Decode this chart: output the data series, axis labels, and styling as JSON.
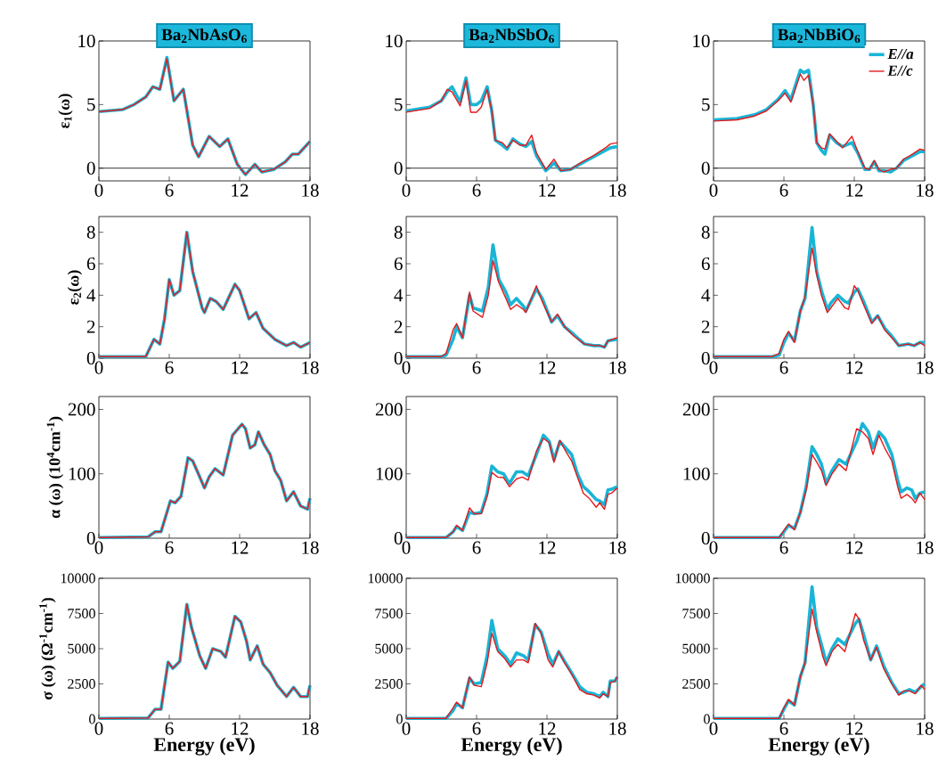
{
  "chart_data": [
    {
      "type": "line",
      "title": "Ba$_{2}$NbAsO$_{6}$",
      "ylabel": "ε$_{1}$(ω)",
      "x": [
        0,
        2,
        3,
        4,
        4.6,
        5.2,
        5.8,
        6.4,
        7.2,
        8.0,
        8.5,
        9.4,
        10.3,
        11.0,
        11.8,
        12.5,
        13.3,
        13.9,
        14.9,
        15.9,
        16.5,
        17.0,
        18
      ],
      "series": [
        {
          "color": "#19b5d6",
          "values": [
            4.45,
            4.6,
            5.0,
            5.6,
            6.4,
            6.2,
            8.7,
            5.3,
            6.2,
            1.8,
            0.9,
            2.5,
            1.7,
            2.3,
            0.3,
            -0.5,
            0.3,
            -0.3,
            -0.1,
            0.5,
            1.1,
            1.1,
            2.1
          ]
        },
        {
          "color": "#e41a1c",
          "values": [
            4.45,
            4.6,
            5.0,
            5.6,
            6.4,
            6.2,
            8.6,
            5.3,
            6.2,
            1.8,
            0.9,
            2.5,
            1.7,
            2.3,
            0.3,
            -0.5,
            0.3,
            -0.3,
            -0.1,
            0.5,
            1.1,
            1.1,
            2.1
          ]
        }
      ],
      "xlim": [
        0,
        18
      ],
      "xticks": [
        0,
        6,
        12,
        18
      ],
      "ylim": [
        -1,
        10
      ],
      "yticks": [
        0,
        5,
        10
      ],
      "ref_lines": [
        {
          "axis": "y",
          "value": 0,
          "color": "#000000"
        }
      ]
    },
    {
      "type": "line",
      "title": "Ba$_{2}$NbSbO$_{6}$",
      "x": [
        0,
        2,
        3,
        3.5,
        3.9,
        4.6,
        5.1,
        5.5,
        6.0,
        6.4,
        6.9,
        7.3,
        7.6,
        8.2,
        8.6,
        9.1,
        9.7,
        10.2,
        10.7,
        11.1,
        11.9,
        12.6,
        13.2,
        14.0,
        15.0,
        16.0,
        17.0,
        17.4,
        18
      ],
      "series": [
        {
          "color": "#19b5d6",
          "values": [
            4.5,
            4.8,
            5.3,
            6.0,
            6.4,
            5.2,
            7.1,
            5.0,
            5.0,
            5.3,
            6.4,
            4.5,
            2.2,
            1.8,
            1.5,
            2.3,
            1.9,
            1.7,
            2.1,
            1.0,
            -0.2,
            0.4,
            -0.2,
            -0.1,
            0.4,
            0.9,
            1.4,
            1.6,
            1.7
          ]
        },
        {
          "color": "#e41a1c",
          "values": [
            4.4,
            4.7,
            5.3,
            6.2,
            6.0,
            4.9,
            6.9,
            4.4,
            4.4,
            4.8,
            6.2,
            4.5,
            2.2,
            2.0,
            1.6,
            2.2,
            1.8,
            1.8,
            2.6,
            1.2,
            -0.1,
            0.7,
            -0.2,
            -0.1,
            0.5,
            1.0,
            1.6,
            1.9,
            2.0
          ]
        }
      ],
      "xlim": [
        0,
        18
      ],
      "xticks": [
        0,
        6,
        12,
        18
      ],
      "ylim": [
        -1,
        10
      ],
      "yticks": [
        0,
        5,
        10
      ],
      "ref_lines": [
        {
          "axis": "y",
          "value": 0,
          "color": "#000000"
        }
      ]
    },
    {
      "type": "line",
      "title": "Ba$_{2}$NbBiO$_{6}$",
      "legend": "top right",
      "x": [
        0,
        2,
        3.5,
        4.5,
        5.5,
        6.1,
        6.6,
        7.4,
        7.7,
        8.1,
        8.5,
        8.8,
        9.2,
        9.5,
        9.9,
        10.5,
        11.0,
        11.8,
        12.3,
        12.9,
        13.3,
        13.7,
        14.1,
        14.5,
        15.1,
        15.6,
        16.2,
        16.8,
        17.6,
        18
      ],
      "series": [
        {
          "name": "E//a",
          "color": "#19b5d6",
          "values": [
            3.8,
            3.9,
            4.2,
            4.6,
            5.4,
            6.1,
            5.4,
            7.7,
            7.5,
            7.7,
            5.0,
            2.0,
            1.4,
            1.1,
            2.6,
            2.0,
            1.7,
            2.0,
            1.2,
            -0.1,
            -0.1,
            0.5,
            -0.2,
            -0.2,
            -0.3,
            0.0,
            0.6,
            0.9,
            1.3,
            1.3
          ]
        },
        {
          "name": "E//c",
          "color": "#e41a1c",
          "values": [
            3.7,
            3.8,
            4.1,
            4.5,
            5.3,
            5.9,
            5.2,
            7.4,
            6.9,
            7.3,
            5.0,
            2.0,
            1.6,
            1.5,
            2.7,
            2.1,
            1.6,
            2.5,
            1.3,
            0.0,
            -0.1,
            0.6,
            -0.1,
            -0.3,
            -0.1,
            0.0,
            0.7,
            1.0,
            1.5,
            1.4
          ]
        }
      ],
      "xlim": [
        0,
        18
      ],
      "xticks": [
        0,
        6,
        12,
        18
      ],
      "ylim": [
        -1,
        10
      ],
      "yticks": [
        0,
        5,
        10
      ],
      "ref_lines": [
        {
          "axis": "y",
          "value": 0,
          "color": "#000000"
        }
      ]
    },
    {
      "type": "line",
      "ylabel": "ε$_{2}$(ω)",
      "x": [
        0,
        4.0,
        4.7,
        5.2,
        5.6,
        6.0,
        6.4,
        6.9,
        7.5,
        8.0,
        8.8,
        9.0,
        9.5,
        10.0,
        10.6,
        11.6,
        12.0,
        12.8,
        13.4,
        14.0,
        15.0,
        16.0,
        16.6,
        17.2,
        18
      ],
      "series": [
        {
          "color": "#19b5d6",
          "values": [
            0.1,
            0.1,
            1.2,
            0.9,
            2.5,
            5.0,
            4.0,
            4.3,
            8.0,
            5.5,
            3.2,
            2.9,
            3.8,
            3.6,
            3.1,
            4.7,
            4.3,
            2.5,
            2.9,
            1.9,
            1.2,
            0.8,
            1.0,
            0.7,
            1.0
          ]
        },
        {
          "color": "#e41a1c",
          "values": [
            0.1,
            0.1,
            1.2,
            0.9,
            2.5,
            5.0,
            4.0,
            4.3,
            8.0,
            5.5,
            3.2,
            2.9,
            3.8,
            3.6,
            3.1,
            4.7,
            4.3,
            2.5,
            2.9,
            1.9,
            1.2,
            0.8,
            1.0,
            0.7,
            1.0
          ]
        }
      ],
      "xlim": [
        0,
        18
      ],
      "xticks": [
        0,
        6,
        12,
        18
      ],
      "ylim": [
        0,
        9
      ],
      "yticks": [
        0,
        2,
        4,
        6,
        8
      ]
    },
    {
      "type": "line",
      "x": [
        0,
        3.0,
        3.4,
        4.0,
        4.3,
        4.8,
        5.4,
        5.7,
        6.5,
        7.0,
        7.4,
        7.9,
        8.5,
        8.9,
        9.4,
        10.0,
        10.2,
        11.1,
        11.6,
        12.4,
        12.9,
        13.5,
        14.3,
        15.2,
        16.0,
        16.5,
        16.9,
        17.2,
        18
      ],
      "series": [
        {
          "color": "#19b5d6",
          "values": [
            0.1,
            0.1,
            0.2,
            1.2,
            2.0,
            1.3,
            4.0,
            3.2,
            3.0,
            4.5,
            7.2,
            5.0,
            4.2,
            3.4,
            3.8,
            3.3,
            3.0,
            4.4,
            3.8,
            2.3,
            2.7,
            2.0,
            1.5,
            0.9,
            0.8,
            0.8,
            0.7,
            1.1,
            1.2
          ]
        },
        {
          "color": "#e41a1c",
          "values": [
            0.1,
            0.1,
            0.3,
            1.8,
            2.2,
            1.3,
            4.2,
            3.0,
            2.6,
            4.0,
            6.2,
            4.8,
            3.8,
            3.1,
            3.4,
            3.1,
            2.9,
            4.6,
            3.6,
            2.3,
            2.8,
            2.0,
            1.4,
            0.9,
            0.8,
            0.8,
            0.7,
            1.1,
            1.3
          ]
        }
      ],
      "xlim": [
        0,
        18
      ],
      "xticks": [
        0,
        6,
        12,
        18
      ],
      "ylim": [
        0,
        9
      ],
      "yticks": [
        0,
        2,
        4,
        6,
        8
      ]
    },
    {
      "type": "line",
      "x": [
        0,
        5.0,
        5.6,
        6.0,
        6.4,
        6.9,
        7.4,
        7.8,
        8.4,
        8.8,
        9.2,
        9.7,
        10.0,
        10.6,
        11.2,
        11.5,
        12.0,
        12.3,
        12.8,
        13.5,
        14.0,
        14.6,
        15.2,
        15.8,
        16.6,
        17.1,
        17.6,
        18
      ],
      "series": [
        {
          "color": "#19b5d6",
          "values": [
            0.1,
            0.1,
            0.2,
            1.0,
            1.6,
            1.1,
            3.0,
            3.8,
            8.3,
            5.5,
            4.3,
            3.1,
            3.5,
            4.0,
            3.6,
            3.5,
            4.2,
            4.4,
            3.6,
            2.3,
            2.7,
            1.9,
            1.4,
            0.8,
            0.9,
            0.8,
            1.0,
            1.0
          ]
        },
        {
          "color": "#e41a1c",
          "values": [
            0.1,
            0.1,
            0.3,
            1.2,
            1.7,
            1.0,
            3.0,
            3.9,
            7.0,
            5.3,
            4.0,
            2.9,
            3.2,
            3.8,
            3.2,
            3.1,
            4.6,
            4.3,
            3.4,
            2.2,
            2.7,
            1.8,
            1.3,
            0.8,
            0.9,
            0.8,
            1.0,
            0.8
          ]
        }
      ],
      "xlim": [
        0,
        18
      ],
      "xticks": [
        0,
        6,
        12,
        18
      ],
      "ylim": [
        0,
        9
      ],
      "yticks": [
        0,
        2,
        4,
        6,
        8
      ]
    },
    {
      "type": "line",
      "ylabel": "α (ω) (10$^{4}$cm$^{-1}$)",
      "x": [
        0,
        4.2,
        4.8,
        5.3,
        5.8,
        6.1,
        6.5,
        7.0,
        7.6,
        8.0,
        8.6,
        9.0,
        9.4,
        9.9,
        10.6,
        11.4,
        12.2,
        12.5,
        12.9,
        13.3,
        13.6,
        14.1,
        14.6,
        15.0,
        15.5,
        16.0,
        16.6,
        17.2,
        17.8,
        18
      ],
      "series": [
        {
          "color": "#19b5d6",
          "values": [
            1,
            2,
            10,
            10,
            40,
            58,
            55,
            65,
            125,
            120,
            95,
            78,
            95,
            108,
            98,
            160,
            177,
            170,
            140,
            145,
            165,
            145,
            130,
            105,
            90,
            58,
            72,
            50,
            45,
            62
          ]
        },
        {
          "color": "#e41a1c",
          "values": [
            1,
            2,
            10,
            10,
            40,
            58,
            55,
            65,
            125,
            120,
            95,
            78,
            95,
            108,
            98,
            160,
            177,
            170,
            140,
            145,
            165,
            145,
            130,
            105,
            90,
            58,
            72,
            50,
            45,
            62
          ]
        }
      ],
      "xlim": [
        0,
        18
      ],
      "xticks": [
        0,
        6,
        12,
        18
      ],
      "ylim": [
        0,
        220
      ],
      "yticks": [
        0,
        100,
        200
      ]
    },
    {
      "type": "line",
      "x": [
        0,
        3.4,
        4.0,
        4.3,
        4.8,
        5.4,
        5.8,
        6.4,
        6.9,
        7.3,
        7.8,
        8.3,
        8.8,
        9.4,
        9.9,
        10.4,
        11.1,
        11.7,
        12.2,
        12.6,
        13.1,
        13.6,
        14.1,
        14.6,
        15.1,
        15.6,
        16.2,
        16.5,
        16.9,
        17.2,
        17.5,
        18
      ],
      "series": [
        {
          "color": "#19b5d6",
          "values": [
            1,
            1,
            10,
            18,
            12,
            40,
            38,
            40,
            70,
            112,
            103,
            100,
            85,
            103,
            103,
            97,
            130,
            160,
            150,
            122,
            150,
            140,
            130,
            100,
            80,
            72,
            60,
            58,
            52,
            75,
            76,
            80
          ]
        },
        {
          "color": "#e41a1c",
          "values": [
            1,
            1,
            10,
            20,
            12,
            47,
            38,
            38,
            65,
            102,
            95,
            94,
            80,
            92,
            95,
            90,
            135,
            155,
            148,
            118,
            152,
            135,
            120,
            95,
            70,
            62,
            48,
            55,
            45,
            68,
            70,
            78
          ]
        }
      ],
      "xlim": [
        0,
        18
      ],
      "xticks": [
        0,
        6,
        12,
        18
      ],
      "ylim": [
        0,
        220
      ],
      "yticks": [
        0,
        100,
        200
      ]
    },
    {
      "type": "line",
      "x": [
        0,
        5.6,
        6.0,
        6.4,
        6.9,
        7.4,
        7.9,
        8.4,
        8.8,
        9.2,
        9.6,
        10.1,
        10.7,
        11.3,
        12.2,
        12.7,
        13.2,
        13.6,
        14.1,
        14.6,
        15.2,
        15.7,
        16.0,
        16.5,
        16.9,
        17.2,
        17.6,
        18
      ],
      "series": [
        {
          "color": "#19b5d6",
          "values": [
            1,
            1,
            10,
            20,
            15,
            40,
            80,
            142,
            130,
            115,
            85,
            105,
            122,
            115,
            150,
            178,
            165,
            140,
            165,
            155,
            130,
            90,
            72,
            78,
            75,
            62,
            70,
            72
          ]
        },
        {
          "color": "#e41a1c",
          "values": [
            1,
            1,
            12,
            22,
            13,
            40,
            75,
            130,
            118,
            105,
            82,
            100,
            115,
            105,
            170,
            165,
            155,
            130,
            160,
            140,
            120,
            80,
            62,
            68,
            62,
            55,
            70,
            60
          ]
        }
      ],
      "xlim": [
        0,
        18
      ],
      "xticks": [
        0,
        6,
        12,
        18
      ],
      "ylim": [
        0,
        220
      ],
      "yticks": [
        0,
        100,
        200
      ]
    },
    {
      "type": "line",
      "ylabel": "σ (ω)  (Ω$^{-1}$cm$^{-1}$)",
      "xlabel": "Energy (eV)",
      "x": [
        0,
        4.2,
        4.8,
        5.3,
        5.9,
        6.3,
        6.9,
        7.5,
        7.9,
        8.6,
        9.1,
        9.7,
        10.4,
        10.8,
        11.6,
        12.1,
        12.6,
        12.9,
        13.5,
        14.0,
        14.6,
        15.2,
        16.0,
        16.6,
        17.2,
        17.8,
        18
      ],
      "series": [
        {
          "color": "#19b5d6",
          "values": [
            50,
            80,
            700,
            700,
            4050,
            3600,
            4100,
            8150,
            6500,
            4500,
            3600,
            5000,
            4800,
            4400,
            7300,
            6900,
            5500,
            4200,
            5200,
            3900,
            3300,
            2400,
            1600,
            2250,
            1600,
            1600,
            2400
          ]
        },
        {
          "color": "#e41a1c",
          "values": [
            50,
            80,
            700,
            700,
            4050,
            3600,
            4100,
            8150,
            6500,
            4500,
            3600,
            5000,
            4800,
            4400,
            7300,
            6900,
            5500,
            4200,
            5200,
            3900,
            3300,
            2400,
            1600,
            2250,
            1600,
            1600,
            2400
          ]
        }
      ],
      "xlim": [
        0,
        18
      ],
      "xticks": [
        0,
        6,
        12,
        18
      ],
      "ylim": [
        0,
        10000
      ],
      "yticks": [
        0,
        2500,
        5000,
        7500,
        10000
      ]
    },
    {
      "type": "line",
      "xlabel": "Energy (eV)",
      "x": [
        0,
        3.4,
        4.0,
        4.3,
        4.8,
        5.4,
        5.8,
        6.4,
        6.9,
        7.3,
        7.8,
        8.4,
        8.9,
        9.4,
        10.0,
        10.4,
        11.0,
        11.5,
        12.1,
        12.5,
        13.0,
        13.5,
        14.1,
        14.8,
        15.4,
        16.0,
        16.5,
        16.8,
        17.2,
        17.4,
        17.8,
        18
      ],
      "series": [
        {
          "color": "#19b5d6",
          "values": [
            50,
            50,
            600,
            1100,
            800,
            2900,
            2500,
            2600,
            4500,
            7000,
            5000,
            4500,
            3900,
            4700,
            4500,
            4200,
            6700,
            6200,
            4600,
            3900,
            4800,
            4100,
            3300,
            2300,
            1900,
            1800,
            1600,
            1900,
            1600,
            2700,
            2700,
            3000
          ]
        },
        {
          "color": "#e41a1c",
          "values": [
            50,
            50,
            800,
            1200,
            800,
            3000,
            2400,
            2300,
            4000,
            6100,
            4800,
            4300,
            3700,
            4200,
            4200,
            4000,
            6800,
            6100,
            4200,
            3700,
            4800,
            4000,
            3200,
            2100,
            1800,
            1700,
            1500,
            1800,
            1600,
            2600,
            2700,
            3000
          ]
        }
      ],
      "xlim": [
        0,
        18
      ],
      "xticks": [
        0,
        6,
        12,
        18
      ],
      "ylim": [
        0,
        10000
      ],
      "yticks": [
        0,
        2500,
        5000,
        7500,
        10000
      ]
    },
    {
      "type": "line",
      "xlabel": "Energy (eV)",
      "x": [
        0,
        5.6,
        6.0,
        6.4,
        6.9,
        7.4,
        7.8,
        8.4,
        8.8,
        9.3,
        9.6,
        10.1,
        10.6,
        11.2,
        12.1,
        12.4,
        12.8,
        13.4,
        13.9,
        14.5,
        15.2,
        15.8,
        16.2,
        16.7,
        17.2,
        17.7,
        18
      ],
      "series": [
        {
          "color": "#19b5d6",
          "values": [
            50,
            50,
            700,
            1300,
            1000,
            3000,
            4000,
            9400,
            6500,
            5000,
            4000,
            5000,
            5700,
            5300,
            6800,
            7100,
            6000,
            4200,
            5200,
            3800,
            2600,
            1800,
            1900,
            2100,
            1900,
            2300,
            2500
          ]
        },
        {
          "color": "#e41a1c",
          "values": [
            50,
            50,
            800,
            1400,
            1000,
            3000,
            4000,
            7800,
            6200,
            4500,
            3800,
            4800,
            5300,
            4800,
            7500,
            7100,
            5600,
            4200,
            5100,
            3600,
            2500,
            1700,
            2000,
            2000,
            1800,
            2400,
            2100
          ]
        }
      ],
      "xlim": [
        0,
        18
      ],
      "xticks": [
        0,
        6,
        12,
        18
      ],
      "ylim": [
        0,
        10000
      ],
      "yticks": [
        0,
        2500,
        5000,
        7500,
        10000
      ]
    }
  ]
}
